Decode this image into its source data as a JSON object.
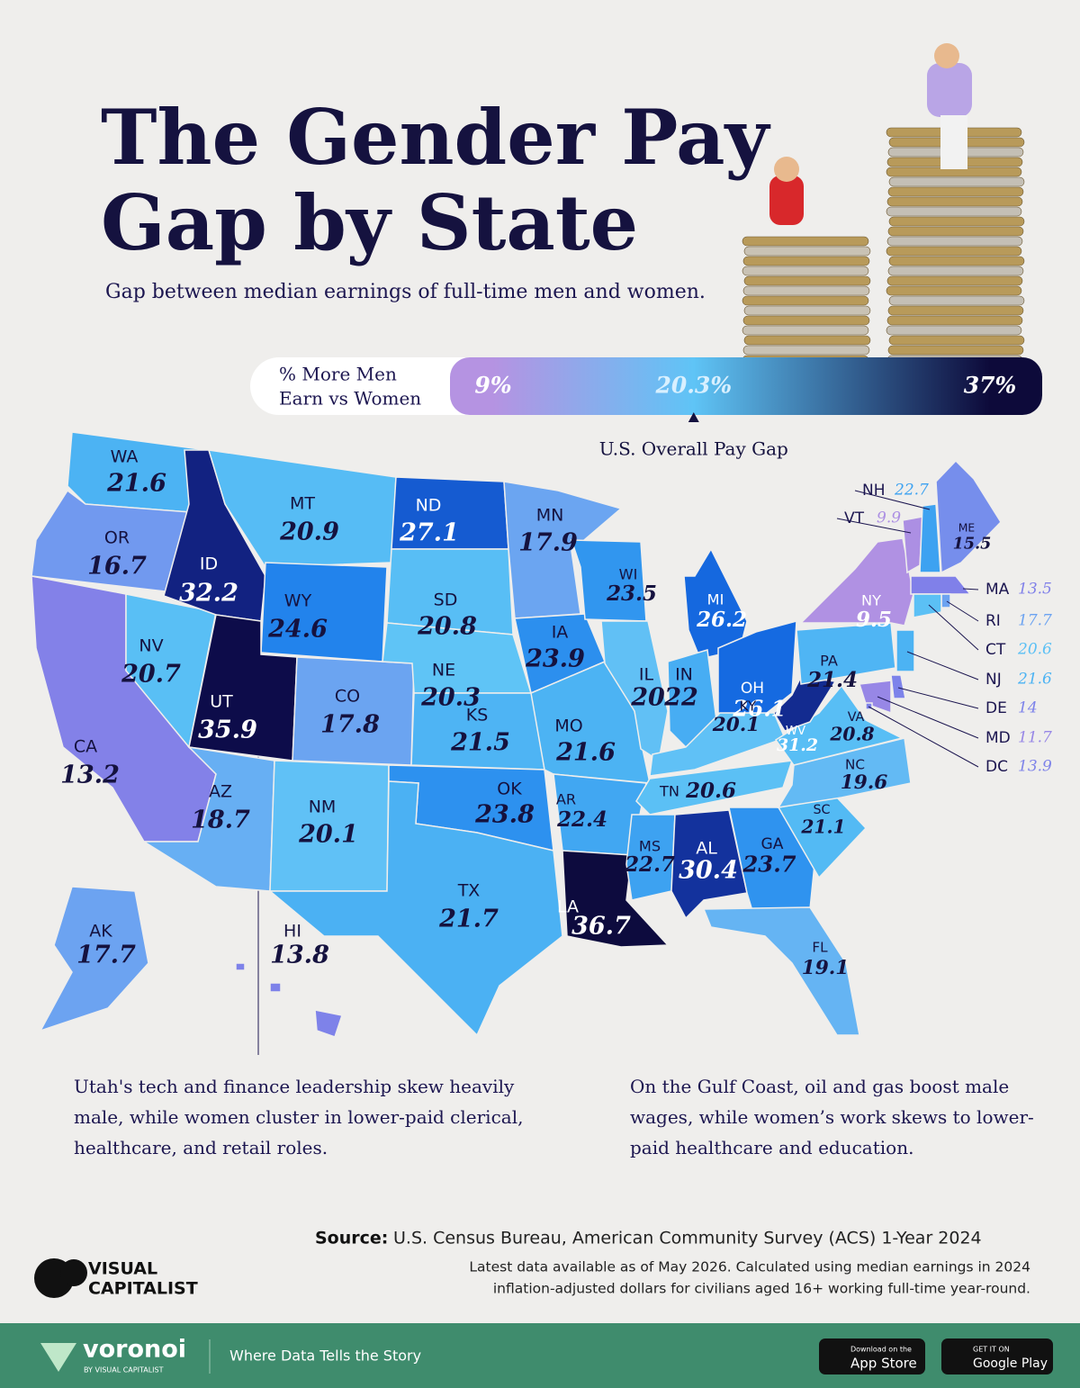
{
  "title_lines": [
    "The Gender Pay",
    "Gap by State"
  ],
  "subtitle": "Gap between median earnings of full-time men and women.",
  "legend": {
    "title_lines": [
      "% More Men",
      "Earn vs Women"
    ],
    "stops": [
      {
        "value": 9,
        "label": "9%",
        "color": "#b593e2"
      },
      {
        "value": 20.3,
        "label": "20.3%",
        "color": "#5fc4f6"
      },
      {
        "value": 37,
        "label": "37%",
        "color": "#0d0a3a"
      }
    ],
    "overall": {
      "label": "U.S. Overall Pay Gap",
      "value": 20.3
    }
  },
  "states": [
    {
      "abbr": "WA",
      "value": 21.6
    },
    {
      "abbr": "OR",
      "value": 16.7
    },
    {
      "abbr": "CA",
      "value": 13.2
    },
    {
      "abbr": "NV",
      "value": 20.7
    },
    {
      "abbr": "ID",
      "value": 32.2
    },
    {
      "abbr": "MT",
      "value": 20.9
    },
    {
      "abbr": "WY",
      "value": 24.6
    },
    {
      "abbr": "UT",
      "value": 35.9
    },
    {
      "abbr": "CO",
      "value": 17.8
    },
    {
      "abbr": "AZ",
      "value": 18.7
    },
    {
      "abbr": "NM",
      "value": 20.1
    },
    {
      "abbr": "ND",
      "value": 27.1
    },
    {
      "abbr": "SD",
      "value": 20.8
    },
    {
      "abbr": "NE",
      "value": 20.3
    },
    {
      "abbr": "KS",
      "value": 21.5
    },
    {
      "abbr": "OK",
      "value": 23.8
    },
    {
      "abbr": "TX",
      "value": 21.7
    },
    {
      "abbr": "MN",
      "value": 17.9
    },
    {
      "abbr": "IA",
      "value": 23.9
    },
    {
      "abbr": "MO",
      "value": 21.6
    },
    {
      "abbr": "AR",
      "value": 22.4
    },
    {
      "abbr": "LA",
      "value": 36.7
    },
    {
      "abbr": "WI",
      "value": 23.5
    },
    {
      "abbr": "IL",
      "value": 20
    },
    {
      "abbr": "MI",
      "value": 26.2
    },
    {
      "abbr": "IN",
      "value": 22
    },
    {
      "abbr": "OH",
      "value": 26.1
    },
    {
      "abbr": "KY",
      "value": 20.1
    },
    {
      "abbr": "TN",
      "value": 20.6
    },
    {
      "abbr": "MS",
      "value": 22.7
    },
    {
      "abbr": "AL",
      "value": 30.4
    },
    {
      "abbr": "GA",
      "value": 23.7
    },
    {
      "abbr": "FL",
      "value": 19.1
    },
    {
      "abbr": "SC",
      "value": 21.1
    },
    {
      "abbr": "NC",
      "value": 19.6
    },
    {
      "abbr": "VA",
      "value": 20.8
    },
    {
      "abbr": "WV",
      "value": 31.2
    },
    {
      "abbr": "PA",
      "value": 21.4
    },
    {
      "abbr": "NY",
      "value": 9.5
    },
    {
      "abbr": "VT",
      "value": 9.9
    },
    {
      "abbr": "NH",
      "value": 22.7
    },
    {
      "abbr": "ME",
      "value": 15.5
    },
    {
      "abbr": "MA",
      "value": 13.5
    },
    {
      "abbr": "RI",
      "value": 17.7
    },
    {
      "abbr": "CT",
      "value": 20.6
    },
    {
      "abbr": "NJ",
      "value": 21.6
    },
    {
      "abbr": "DE",
      "value": 14
    },
    {
      "abbr": "MD",
      "value": 11.7
    },
    {
      "abbr": "DC",
      "value": 13.9
    },
    {
      "abbr": "AK",
      "value": 17.7
    },
    {
      "abbr": "HI",
      "value": 13.8
    }
  ],
  "annotations": [
    "Utah's tech and finance leadership skew heavily male, while women cluster in lower-paid clerical, healthcare, and retail roles.",
    "On the Gulf Coast, oil and gas boost male wages, while women’s work skews to lower-paid healthcare and education."
  ],
  "source": {
    "label": "Source:",
    "text": "U.S. Census Bureau, American Community Survey (ACS) 1-Year 2024"
  },
  "note_lines": [
    "Latest data available as of May 2026. Calculated using median earnings in 2024",
    "inflation-adjusted dollars for civilians aged 16+ working full-time year-round."
  ],
  "logo_lines": [
    "VISUAL",
    "CAPITALIST"
  ],
  "footer": {
    "name": "voronoi",
    "byline": "BY VISUAL CAPITALIST",
    "tagline": "Where Data Tells the Story",
    "app_store": [
      "Download on the",
      "App Store"
    ],
    "google_play": [
      "GET IT ON",
      "Google Play"
    ]
  }
}
